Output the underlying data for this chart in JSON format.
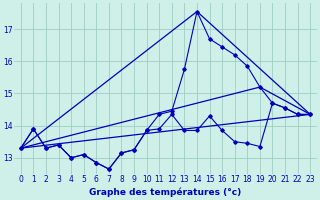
{
  "xlabel": "Graphe des températures (°c)",
  "background_color": "#cef0e8",
  "grid_color": "#a0ccc4",
  "line_color": "#0000bb",
  "xlim": [
    -0.5,
    23.5
  ],
  "ylim": [
    12.5,
    17.8
  ],
  "yticks": [
    13,
    14,
    15,
    16,
    17
  ],
  "xticks": [
    0,
    1,
    2,
    3,
    4,
    5,
    6,
    7,
    8,
    9,
    10,
    11,
    12,
    13,
    14,
    15,
    16,
    17,
    18,
    19,
    20,
    21,
    22,
    23
  ],
  "lines": [
    {
      "x": [
        0,
        1,
        2,
        3,
        4,
        5,
        6,
        7,
        8,
        9,
        10,
        11,
        12,
        13,
        14,
        15,
        16,
        17,
        18,
        19,
        20,
        21,
        22,
        23
      ],
      "y": [
        13.3,
        13.9,
        13.3,
        13.4,
        13.0,
        13.1,
        12.85,
        12.65,
        13.15,
        13.25,
        13.85,
        13.9,
        14.35,
        13.85,
        13.85,
        14.3,
        13.85,
        13.5,
        13.45,
        13.35,
        14.7,
        14.55,
        14.35,
        14.35
      ]
    },
    {
      "x": [
        0,
        1,
        2,
        3,
        4,
        5,
        6,
        7,
        8,
        9,
        10,
        11,
        12,
        13,
        14,
        15,
        16,
        17,
        18,
        19,
        20,
        21,
        22,
        23
      ],
      "y": [
        13.3,
        13.9,
        13.3,
        13.4,
        13.0,
        13.1,
        12.85,
        12.65,
        13.15,
        13.25,
        13.85,
        14.35,
        14.45,
        15.75,
        17.55,
        16.7,
        16.45,
        16.2,
        15.85,
        15.2,
        14.7,
        14.55,
        14.35,
        14.35
      ]
    },
    {
      "x": [
        0,
        23
      ],
      "y": [
        13.3,
        14.35
      ],
      "no_markers": true
    },
    {
      "x": [
        0,
        19,
        23
      ],
      "y": [
        13.3,
        15.2,
        14.35
      ],
      "no_markers": true
    },
    {
      "x": [
        0,
        14,
        23
      ],
      "y": [
        13.3,
        17.55,
        14.35
      ],
      "no_markers": true
    }
  ]
}
